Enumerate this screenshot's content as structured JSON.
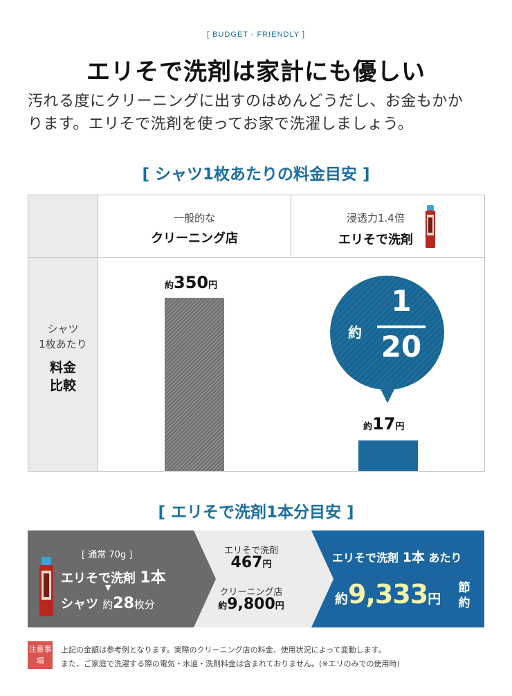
{
  "header": {
    "tag": "[ BUDGET - FRIENDLY ]",
    "title": "エリそで洗剤は家計にも優しい",
    "lead_line1": "汚れる度にクリーニングに出すのはめんどうだし、お金もかか",
    "lead_line2": "ります。エリそで洗剤を使ってお家で洗濯しましょう。"
  },
  "comparison": {
    "section_title": "[ シャツ1枚あたりの料金目安 ]",
    "col1_small": "一般的な",
    "col1_big": "クリーニング店",
    "col2_small": "浸透力1.4倍",
    "col2_big": "エリそで洗剤",
    "row_small1": "シャツ",
    "row_small2": "1枚あたり",
    "row_big1": "料金",
    "row_big2": "比較",
    "cleaning_prefix": "約",
    "cleaning_price": "350",
    "cleaning_unit": "円",
    "detergent_prefix": "約",
    "detergent_price": "17",
    "detergent_unit": "円",
    "bubble_prefix": "約",
    "bubble_numerator": "1",
    "bubble_denominator": "20"
  },
  "per_bottle": {
    "section_title": "[ エリそで洗剤1本分目安 ]",
    "note": "[ 通常 70g ]",
    "line1_text": "エリそで洗剤",
    "line1_count": "1本",
    "arrow": "▼",
    "line2_text": "シャツ",
    "line2_approx": "約",
    "line2_count": "28",
    "line2_unit": "枚分",
    "detergent_caption": "エリそで洗剤",
    "detergent_value": "467",
    "detergent_unit": "円",
    "cleaning_caption": "クリーニング店",
    "cleaning_prefix": "約",
    "cleaning_value": "9,800",
    "cleaning_unit": "円",
    "headline_text": "エリそで洗剤",
    "headline_count": "1本",
    "headline_suffix": "あたり",
    "save_prefix": "約",
    "save_value": "9,333",
    "save_unit": "円",
    "save_label": "節約"
  },
  "footnote": {
    "badge": "注意事項",
    "line1": "上記の金額は参考例となります。実際のクリーニング店の料金、使用状況によって変動します。",
    "line2": "また、ご家庭で洗濯する際の電気・水道・洗剤料金は含まれておりません。(※エリのみでの使用時)"
  },
  "colors": {
    "accent_blue": "#1b66a0",
    "bar_gray": "#7a7a7a",
    "save_yellow": "#f2f2a8",
    "note_red": "#d9534f"
  },
  "icons": [
    "spray-can-icon",
    "down-arrow-icon"
  ]
}
